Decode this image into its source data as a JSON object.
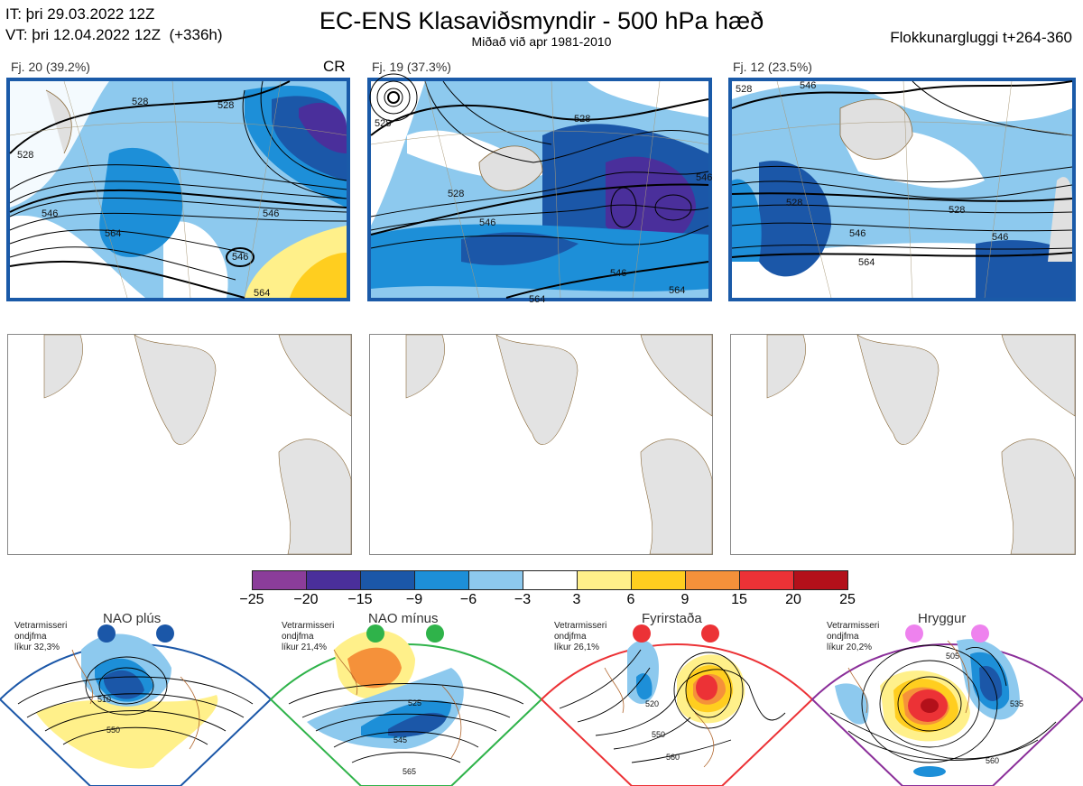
{
  "header": {
    "it_line": "IT: þri 29.03.2022 12Z",
    "vt_line": "VT: þri 12.04.2022 12Z  (+336h)",
    "title": "EC-ENS Klasaviðsmyndir - 500 hPa hæð",
    "subtitle": "Miðað við apr 1981-2010",
    "window": "Flokkunargluggi t+264-360"
  },
  "clusters": [
    {
      "label": "Fj. 20 (39.2%)",
      "tag": "CR",
      "contours": [
        "528",
        "528",
        "528",
        "546",
        "546",
        "564",
        "546",
        "564"
      ]
    },
    {
      "label": "Fj. 19 (37.3%)",
      "tag": "",
      "contours": [
        "528",
        "528",
        "528",
        "546",
        "546",
        "564",
        "564",
        "546"
      ]
    },
    {
      "label": "Fj. 12 (23.5%)",
      "tag": "",
      "contours": [
        "528",
        "528",
        "528",
        "546",
        "546",
        "564",
        "546"
      ]
    }
  ],
  "colorbar": {
    "ticks": [
      "−25",
      "−20",
      "−15",
      "−9",
      "−6",
      "−3",
      "3",
      "6",
      "9",
      "15",
      "20",
      "25"
    ],
    "colors": [
      "#8b3d9a",
      "#4a2f9b",
      "#1b57a8",
      "#1d8fd8",
      "#8dc9ee",
      "#ffffff",
      "#fff08a",
      "#ffce1f",
      "#f5913a",
      "#ec3236",
      "#b3101a"
    ]
  },
  "regimes": [
    {
      "title": "NAO plús",
      "note": "Vetrarmisseri\nondjfma\nlíkur 32,3%",
      "frame_color": "#1b57a8",
      "dot_color": "#1b57a8",
      "contours": [
        "510",
        "550"
      ]
    },
    {
      "title": "NAO mínus",
      "note": "Vetrarmisseri\nondjfma\nlíkur 21,4%",
      "frame_color": "#2fb34a",
      "dot_color": "#2fb34a",
      "contours": [
        "525",
        "545",
        "565"
      ]
    },
    {
      "title": "Fyrirstaða",
      "note": "Vetrarmisseri\nondjfma\nlíkur 26,1%",
      "frame_color": "#ec3236",
      "dot_color": "#ec3236",
      "contours": [
        "520",
        "550",
        "560"
      ]
    },
    {
      "title": "Hryggur",
      "note": "Vetrarmisseri\nondjfma\nlíkur 20,2%",
      "frame_color": "#8b2f9a",
      "dot_color": "#ee82ee",
      "contours": [
        "505",
        "535",
        "560"
      ]
    }
  ]
}
